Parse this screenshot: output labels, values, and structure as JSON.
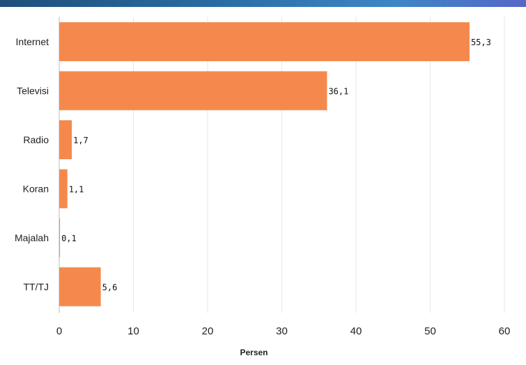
{
  "chart_data": {
    "type": "bar",
    "orientation": "horizontal",
    "categories": [
      "Internet",
      "Televisi",
      "Radio",
      "Koran",
      "Majalah",
      "TT/TJ"
    ],
    "values": [
      55.3,
      36.1,
      1.7,
      1.1,
      0.1,
      5.6
    ],
    "value_labels": [
      "55,3",
      "36,1",
      "1,7",
      "1,1",
      "0,1",
      "5,6"
    ],
    "xlabel": "Persen",
    "ylabel": "",
    "xlim": [
      0,
      60
    ],
    "xticks": [
      0,
      10,
      20,
      30,
      40,
      50,
      60
    ],
    "grid": true,
    "colors": {
      "bar": "#f5894d",
      "grid": "#e6e6e6",
      "axis": "#bbbbbb",
      "header": "#2a6fa8"
    }
  }
}
